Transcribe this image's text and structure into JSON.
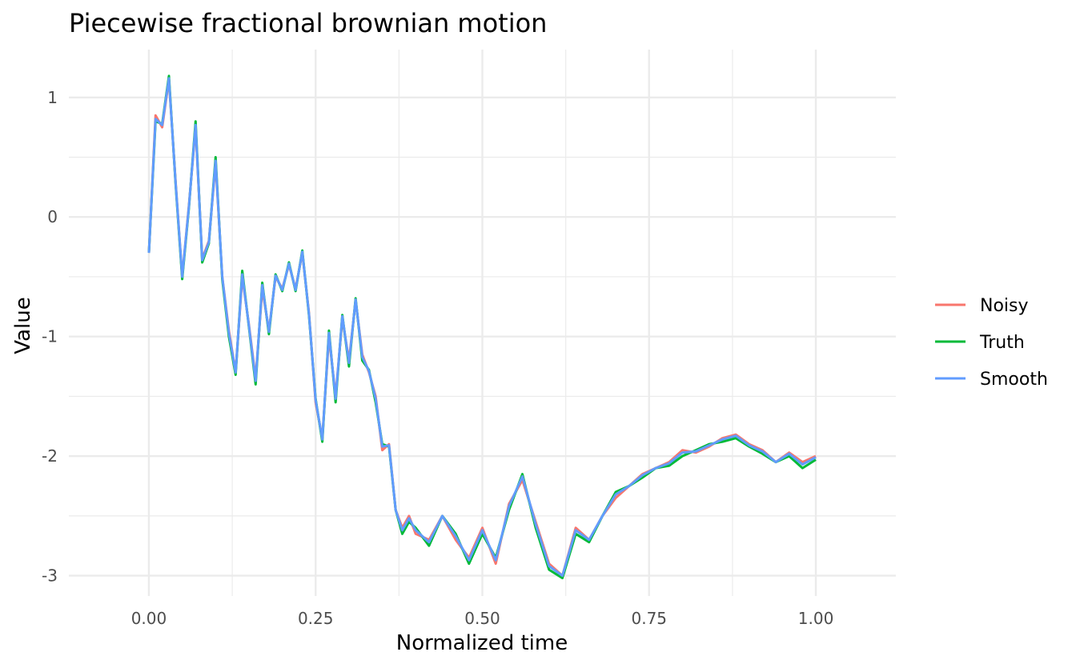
{
  "chart_data": {
    "type": "line",
    "title": "Piecewise fractional brownian motion",
    "xlabel": "Normalized time",
    "ylabel": "Value",
    "xlim": [
      -0.12,
      1.12
    ],
    "ylim": [
      -3.17,
      1.4
    ],
    "x_ticks": [
      0.0,
      0.25,
      0.5,
      0.75,
      1.0
    ],
    "x_tick_labels": [
      "0.00",
      "0.25",
      "0.50",
      "0.75",
      "1.00"
    ],
    "x_minor_ticks": [
      0.125,
      0.375,
      0.625,
      0.875
    ],
    "y_ticks": [
      1,
      0,
      -1,
      -2,
      -3
    ],
    "y_tick_labels": [
      "1",
      "0",
      "-1",
      "-2",
      "-3"
    ],
    "y_minor_ticks": [
      0.5,
      -0.5,
      -1.5,
      -2.5
    ],
    "grid": true,
    "legend_position": "right",
    "x": [
      0.0,
      0.01,
      0.02,
      0.03,
      0.04,
      0.05,
      0.06,
      0.07,
      0.08,
      0.09,
      0.1,
      0.11,
      0.12,
      0.13,
      0.14,
      0.15,
      0.16,
      0.17,
      0.18,
      0.19,
      0.2,
      0.21,
      0.22,
      0.23,
      0.24,
      0.25,
      0.26,
      0.27,
      0.28,
      0.29,
      0.3,
      0.31,
      0.32,
      0.33,
      0.34,
      0.35,
      0.36,
      0.37,
      0.38,
      0.39,
      0.4,
      0.42,
      0.44,
      0.46,
      0.48,
      0.5,
      0.52,
      0.54,
      0.56,
      0.58,
      0.6,
      0.62,
      0.64,
      0.66,
      0.68,
      0.7,
      0.72,
      0.74,
      0.76,
      0.78,
      0.8,
      0.82,
      0.84,
      0.86,
      0.88,
      0.9,
      0.92,
      0.94,
      0.96,
      0.98,
      1.0
    ],
    "series": [
      {
        "name": "Noisy",
        "color": "#F8766D",
        "values": [
          -0.3,
          0.85,
          0.75,
          1.15,
          0.3,
          -0.5,
          0.1,
          0.75,
          -0.35,
          -0.2,
          0.45,
          -0.5,
          -0.95,
          -1.3,
          -0.5,
          -0.9,
          -1.35,
          -0.6,
          -0.95,
          -0.5,
          -0.6,
          -0.4,
          -0.6,
          -0.3,
          -0.8,
          -1.55,
          -1.85,
          -1.0,
          -1.5,
          -0.85,
          -1.2,
          -0.7,
          -1.15,
          -1.3,
          -1.5,
          -1.95,
          -1.9,
          -2.45,
          -2.6,
          -2.5,
          -2.65,
          -2.7,
          -2.5,
          -2.7,
          -2.85,
          -2.6,
          -2.9,
          -2.4,
          -2.2,
          -2.55,
          -2.9,
          -3.0,
          -2.6,
          -2.7,
          -2.5,
          -2.35,
          -2.25,
          -2.15,
          -2.1,
          -2.05,
          -1.95,
          -1.97,
          -1.92,
          -1.85,
          -1.82,
          -1.9,
          -1.95,
          -2.05,
          -1.97,
          -2.05,
          -2.0
        ]
      },
      {
        "name": "Truth",
        "color": "#00BA38",
        "values": [
          -0.3,
          0.8,
          0.78,
          1.18,
          0.28,
          -0.52,
          0.08,
          0.8,
          -0.38,
          -0.22,
          0.5,
          -0.52,
          -1.0,
          -1.32,
          -0.45,
          -0.92,
          -1.4,
          -0.55,
          -0.98,
          -0.48,
          -0.62,
          -0.38,
          -0.62,
          -0.28,
          -0.82,
          -1.52,
          -1.88,
          -0.95,
          -1.55,
          -0.82,
          -1.25,
          -0.68,
          -1.2,
          -1.28,
          -1.55,
          -1.9,
          -1.92,
          -2.45,
          -2.65,
          -2.55,
          -2.6,
          -2.75,
          -2.5,
          -2.65,
          -2.9,
          -2.65,
          -2.85,
          -2.45,
          -2.15,
          -2.6,
          -2.95,
          -3.02,
          -2.65,
          -2.72,
          -2.5,
          -2.3,
          -2.25,
          -2.18,
          -2.1,
          -2.08,
          -2.0,
          -1.95,
          -1.9,
          -1.88,
          -1.85,
          -1.92,
          -1.98,
          -2.05,
          -2.0,
          -2.1,
          -2.03
        ]
      },
      {
        "name": "Smooth",
        "color": "#619CFF",
        "values": [
          -0.3,
          0.82,
          0.77,
          1.16,
          0.29,
          -0.5,
          0.09,
          0.77,
          -0.36,
          -0.21,
          0.47,
          -0.5,
          -0.97,
          -1.3,
          -0.48,
          -0.91,
          -1.37,
          -0.57,
          -0.96,
          -0.49,
          -0.61,
          -0.39,
          -0.61,
          -0.29,
          -0.81,
          -1.53,
          -1.86,
          -0.97,
          -1.52,
          -0.83,
          -1.22,
          -0.69,
          -1.17,
          -1.29,
          -1.52,
          -1.92,
          -1.91,
          -2.45,
          -2.62,
          -2.52,
          -2.62,
          -2.72,
          -2.5,
          -2.67,
          -2.87,
          -2.62,
          -2.87,
          -2.42,
          -2.17,
          -2.57,
          -2.92,
          -3.0,
          -2.62,
          -2.7,
          -2.5,
          -2.32,
          -2.25,
          -2.16,
          -2.1,
          -2.06,
          -1.97,
          -1.96,
          -1.91,
          -1.86,
          -1.83,
          -1.91,
          -1.96,
          -2.05,
          -1.98,
          -2.07,
          -2.01
        ]
      }
    ]
  }
}
